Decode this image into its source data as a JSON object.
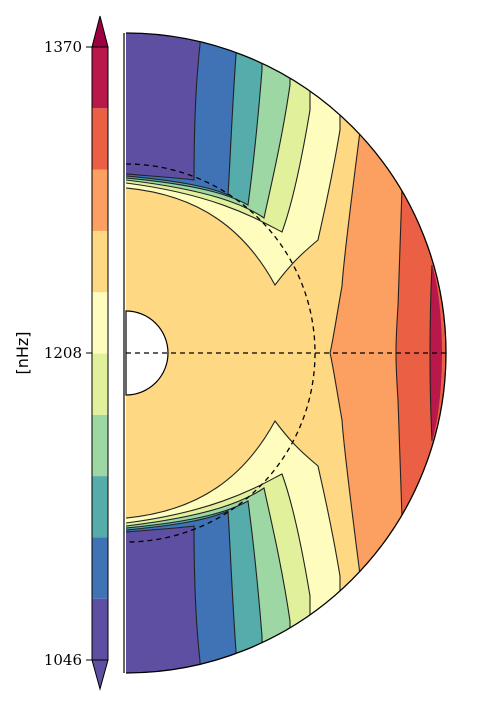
{
  "chart_data": {
    "type": "contour",
    "colorbar": {
      "label": "[nHz]",
      "ticks": [
        {
          "value": 1370,
          "label": "1370"
        },
        {
          "value": 1208,
          "label": "1208"
        },
        {
          "value": 1046,
          "label": "1046"
        }
      ],
      "min": 1046,
      "max": 1370,
      "levels": 9,
      "extend": "both",
      "colors": [
        "#5e4fa2",
        "#3f73b5",
        "#55acaa",
        "#9dd7a4",
        "#e1f19b",
        "#fefdbd",
        "#fed882",
        "#fba060",
        "#eb6045",
        "#b9194a"
      ],
      "under_color": "#5e4fa2",
      "over_color": "#9e0142"
    },
    "contour_levels": [
      1078,
      1111,
      1143,
      1176,
      1208,
      1240,
      1273,
      1305,
      1338
    ],
    "meridional_plane": {
      "kind": "half-disk",
      "inner_core": "white disk",
      "tachocline": "dashed circle",
      "equator": "dashed line",
      "colormap": "Spectral_r"
    }
  }
}
